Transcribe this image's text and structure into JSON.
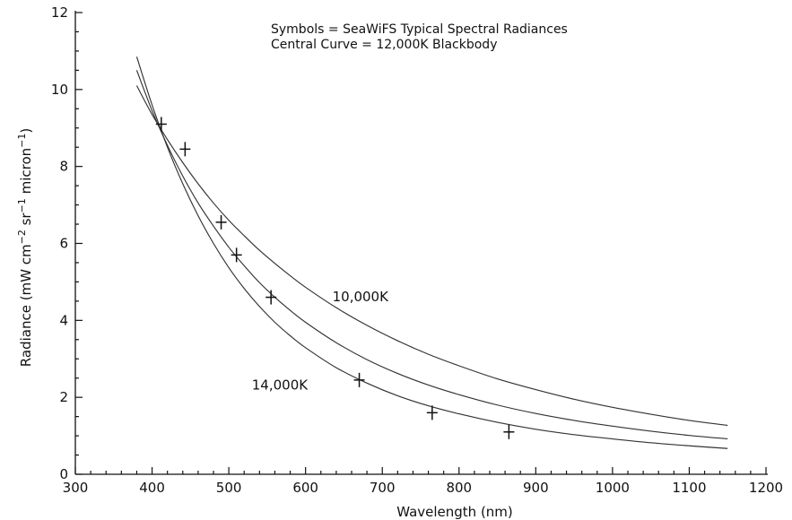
{
  "chart_data": {
    "type": "line",
    "title": "",
    "xlabel": "Wavelength (nm)",
    "ylabel": "Radiance (mW cm",
    "ylabel_parts": [
      "Radiance (mW cm",
      "−2",
      " sr",
      "−1",
      " micron",
      "−1",
      ")"
    ],
    "xlim": [
      300,
      1200
    ],
    "ylim": [
      0,
      12
    ],
    "x_ticks": [
      300,
      400,
      500,
      600,
      700,
      800,
      900,
      1000,
      1100,
      1200
    ],
    "y_ticks": [
      0,
      2,
      4,
      6,
      8,
      10,
      12
    ],
    "grid": false,
    "annotations": [
      "Symbols = SeaWiFS Typical Spectral Radiances",
      "Central Curve = 12,000K Blackbody"
    ],
    "curve_labels": [
      {
        "text": "10,000K",
        "x": 635,
        "y": 4.5
      },
      {
        "text": "14,000K",
        "x": 530,
        "y": 2.2
      }
    ],
    "series": [
      {
        "kind": "curve",
        "x": [
          380,
          400,
          420,
          440,
          460,
          480,
          500,
          520,
          540,
          560,
          580,
          600,
          640,
          680,
          720,
          760,
          800,
          850,
          900,
          950,
          1000,
          1050,
          1100,
          1150
        ],
        "values": [
          10.1,
          9.35,
          8.7,
          8.1,
          7.55,
          7.05,
          6.6,
          6.2,
          5.82,
          5.48,
          5.16,
          4.86,
          4.33,
          3.87,
          3.47,
          3.12,
          2.82,
          2.48,
          2.2,
          1.95,
          1.74,
          1.56,
          1.4,
          1.27
        ]
      },
      {
        "kind": "curve",
        "x": [
          380,
          400,
          420,
          440,
          460,
          480,
          500,
          520,
          540,
          560,
          580,
          600,
          640,
          680,
          720,
          760,
          800,
          850,
          900,
          950,
          1000,
          1050,
          1100,
          1150
        ],
        "values": [
          10.5,
          9.45,
          8.55,
          7.75,
          7.05,
          6.45,
          5.9,
          5.42,
          4.98,
          4.6,
          4.26,
          3.95,
          3.42,
          2.98,
          2.62,
          2.32,
          2.07,
          1.8,
          1.58,
          1.4,
          1.25,
          1.12,
          1.01,
          0.92
        ]
      },
      {
        "kind": "curve",
        "x": [
          380,
          400,
          420,
          440,
          460,
          480,
          500,
          520,
          540,
          560,
          580,
          600,
          640,
          680,
          720,
          760,
          800,
          850,
          900,
          950,
          1000,
          1050,
          1100,
          1150
        ],
        "values": [
          10.85,
          9.6,
          8.5,
          7.55,
          6.72,
          6.0,
          5.37,
          4.83,
          4.36,
          3.95,
          3.6,
          3.29,
          2.77,
          2.37,
          2.04,
          1.78,
          1.57,
          1.35,
          1.17,
          1.03,
          0.92,
          0.82,
          0.74,
          0.67
        ]
      },
      {
        "kind": "points",
        "x": [
          412,
          443,
          490,
          510,
          555,
          670,
          765,
          865
        ],
        "values": [
          9.1,
          8.45,
          6.55,
          5.7,
          4.6,
          2.45,
          1.6,
          1.1
        ]
      }
    ]
  }
}
